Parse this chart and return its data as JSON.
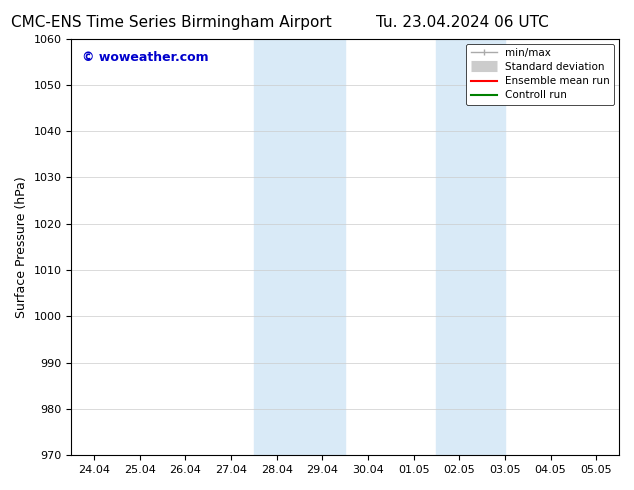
{
  "title_left": "CMC-ENS Time Series Birmingham Airport",
  "title_right": "Tu. 23.04.2024 06 UTC",
  "ylabel": "Surface Pressure (hPa)",
  "xlim_dates": [
    "24.04",
    "25.04",
    "26.04",
    "27.04",
    "28.04",
    "29.04",
    "30.04",
    "01.05",
    "02.05",
    "03.05",
    "04.05",
    "05.05"
  ],
  "ylim": [
    970,
    1060
  ],
  "yticks": [
    970,
    980,
    990,
    1000,
    1010,
    1020,
    1030,
    1040,
    1050,
    1060
  ],
  "shaded_regions": [
    {
      "xstart": 4,
      "xend": 6
    },
    {
      "xstart": 8,
      "xend": 9.5
    }
  ],
  "shaded_color": "#d9eaf7",
  "legend_entries": [
    {
      "label": "min/max",
      "color": "#aaaaaa",
      "lw": 1.0,
      "style": "solid",
      "marker": "|"
    },
    {
      "label": "Standard deviation",
      "color": "#cccccc",
      "lw": 6,
      "style": "solid"
    },
    {
      "label": "Ensemble mean run",
      "color": "red",
      "lw": 1.5,
      "style": "solid"
    },
    {
      "label": "Controll run",
      "color": "green",
      "lw": 1.5,
      "style": "solid"
    }
  ],
  "watermark": "© woweather.com",
  "watermark_color": "#0000cc",
  "bg_color": "#ffffff",
  "grid_color": "#cccccc",
  "title_fontsize": 11,
  "tick_fontsize": 8,
  "ylabel_fontsize": 9
}
